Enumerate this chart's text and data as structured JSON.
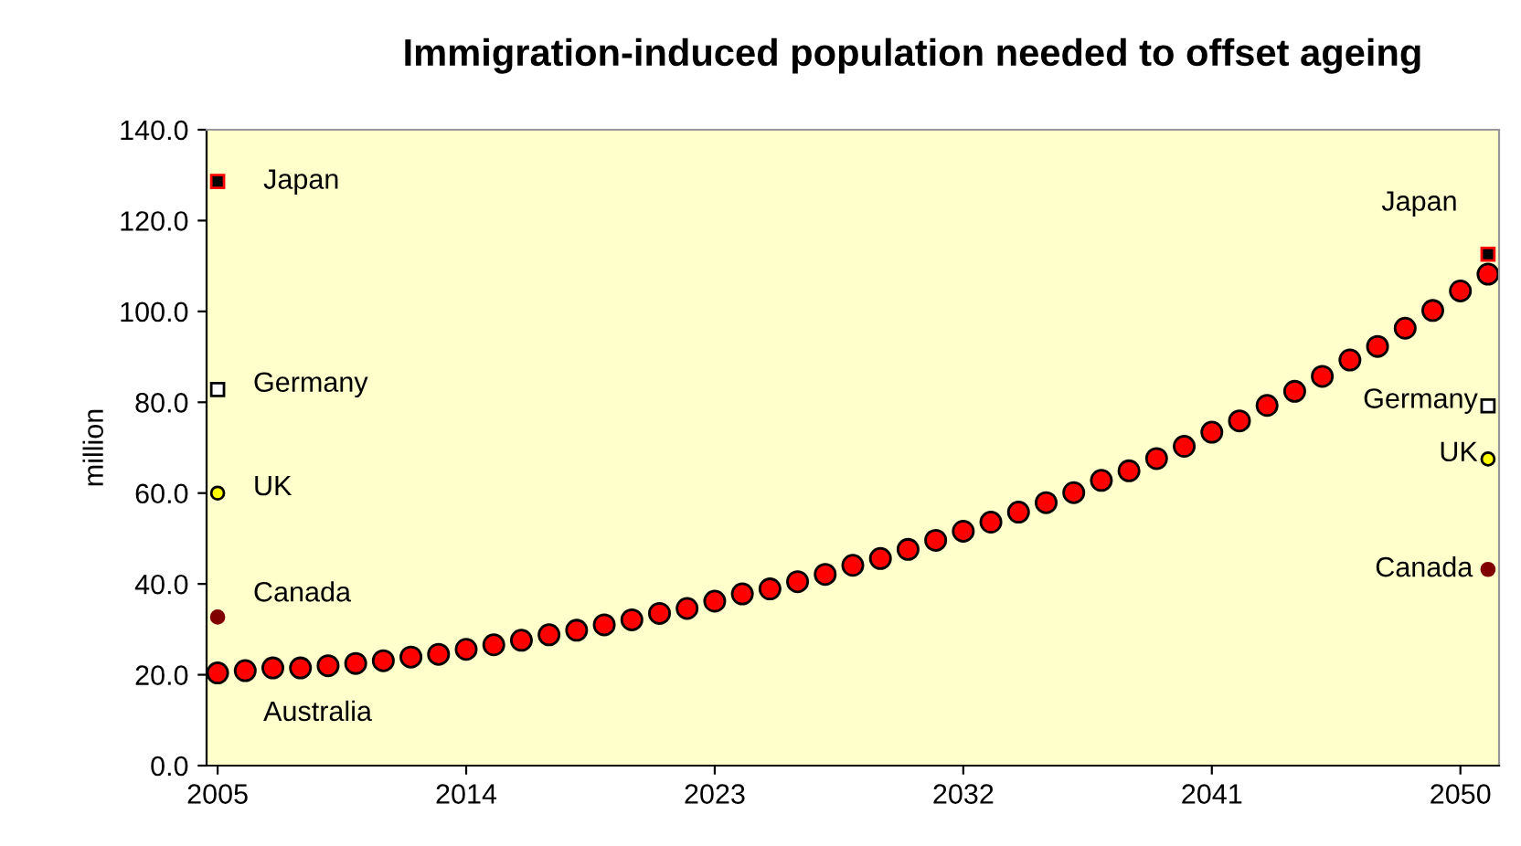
{
  "chart_data": {
    "type": "scatter",
    "title": "Immigration-induced population needed to offset ageing",
    "ylabel": "million",
    "xlim": [
      2004.6,
      2051.4
    ],
    "xticks": [
      2005,
      2014,
      2023,
      2032,
      2041,
      2050
    ],
    "ylim": [
      0,
      140
    ],
    "yticks": [
      {
        "value": 0,
        "label": "0.0"
      },
      {
        "value": 20,
        "label": "20.0"
      },
      {
        "value": 40,
        "label": "40.0"
      },
      {
        "value": 60,
        "label": "60.0"
      },
      {
        "value": 80,
        "label": "80.0"
      },
      {
        "value": 100,
        "label": "100.0"
      },
      {
        "value": 120,
        "label": "120.0"
      },
      {
        "value": 140,
        "label": "140.0"
      }
    ],
    "grid": false,
    "legend": false,
    "series": [
      {
        "name": "Australia",
        "color": "#ff0000",
        "marker": "circle",
        "x": [
          2005,
          2006,
          2007,
          2008,
          2009,
          2010,
          2011,
          2012,
          2013,
          2014,
          2015,
          2016,
          2017,
          2018,
          2019,
          2020,
          2021,
          2022,
          2023,
          2024,
          2025,
          2026,
          2027,
          2028,
          2029,
          2030,
          2031,
          2032,
          2033,
          2034,
          2035,
          2036,
          2037,
          2038,
          2039,
          2040,
          2041,
          2042,
          2043,
          2044,
          2045,
          2046,
          2047,
          2048,
          2049,
          2050,
          2051
        ],
        "values": [
          20.4,
          20.9,
          21.5,
          21.5,
          22.0,
          22.5,
          23.1,
          23.9,
          24.5,
          25.6,
          26.6,
          27.6,
          28.8,
          29.8,
          31.0,
          32.1,
          33.5,
          34.6,
          36.2,
          37.8,
          38.9,
          40.5,
          42.1,
          44.1,
          45.6,
          47.6,
          49.6,
          51.6,
          53.6,
          55.8,
          57.9,
          60.1,
          62.8,
          64.9,
          67.6,
          70.3,
          73.4,
          75.9,
          79.3,
          82.4,
          85.7,
          89.3,
          92.3,
          96.3,
          100.2,
          104.5,
          108.2
        ]
      },
      {
        "name": "Japan",
        "color": "#000000",
        "marker": "square",
        "x": [
          2005,
          2051
        ],
        "values": [
          128.6,
          112.6
        ]
      },
      {
        "name": "Germany",
        "color": "#ffffff",
        "marker": "square",
        "x": [
          2005,
          2051
        ],
        "values": [
          82.8,
          79.2
        ]
      },
      {
        "name": "UK",
        "color": "#ffff00",
        "marker": "circle",
        "x": [
          2005,
          2051
        ],
        "values": [
          60.0,
          67.5
        ]
      },
      {
        "name": "Canada",
        "color": "#800000",
        "marker": "circle",
        "x": [
          2005,
          2051
        ],
        "values": [
          32.7,
          43.2
        ]
      }
    ]
  }
}
